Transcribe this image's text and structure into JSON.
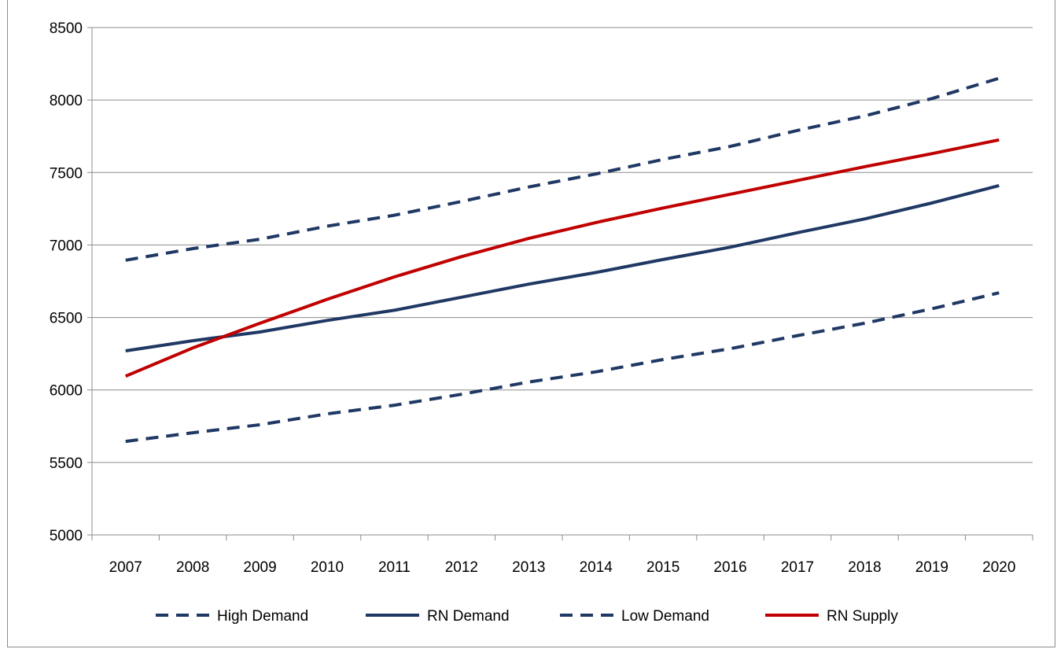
{
  "chart_data": {
    "type": "line",
    "title": "",
    "xlabel": "",
    "ylabel": "",
    "x": [
      "2007",
      "2008",
      "2009",
      "2010",
      "2011",
      "2012",
      "2013",
      "2014",
      "2015",
      "2016",
      "2017",
      "2018",
      "2019",
      "2020"
    ],
    "ylim": [
      5000,
      8500
    ],
    "yticks": [
      5000,
      5500,
      6000,
      6500,
      7000,
      7500,
      8000,
      8500
    ],
    "grid": "horizontal",
    "legend_position": "bottom",
    "series": [
      {
        "name": "High Demand",
        "color": "#1f3864",
        "style": "dashed",
        "values": [
          6895,
          6975,
          7040,
          7130,
          7205,
          7300,
          7400,
          7490,
          7590,
          7680,
          7790,
          7890,
          8010,
          8150
        ]
      },
      {
        "name": "RN Demand",
        "color": "#1f3864",
        "style": "solid",
        "values": [
          6270,
          6340,
          6400,
          6480,
          6550,
          6640,
          6730,
          6810,
          6900,
          6985,
          7085,
          7180,
          7290,
          7410
        ]
      },
      {
        "name": "Low Demand",
        "color": "#1f3864",
        "style": "dashed",
        "values": [
          5645,
          5705,
          5760,
          5835,
          5895,
          5970,
          6055,
          6125,
          6210,
          6285,
          6375,
          6460,
          6560,
          6670
        ]
      },
      {
        "name": "RN Supply",
        "color": "#c00000",
        "style": "solid",
        "values": [
          6095,
          6290,
          6460,
          6625,
          6780,
          6920,
          7045,
          7155,
          7255,
          7350,
          7445,
          7540,
          7630,
          7725
        ]
      }
    ]
  }
}
